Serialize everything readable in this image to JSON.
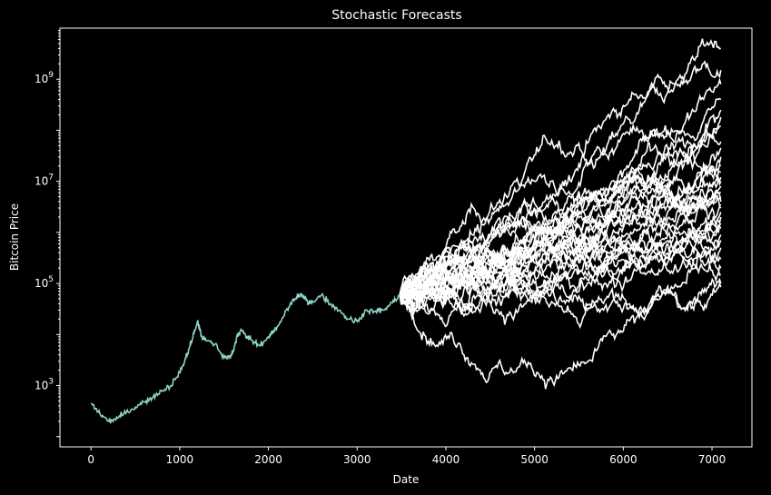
{
  "chart_data": {
    "type": "line",
    "title": "Stochastic Forecasts",
    "xlabel": "Date",
    "ylabel": "Bitcoin Price",
    "xlim": [
      -350,
      7450
    ],
    "ylim_log10": [
      1.8,
      10.0
    ],
    "y_scale": "log",
    "grid": false,
    "legend": "none",
    "x_ticks": [
      {
        "value": 0,
        "label": "0"
      },
      {
        "value": 1000,
        "label": "1000"
      },
      {
        "value": 2000,
        "label": "2000"
      },
      {
        "value": 3000,
        "label": "3000"
      },
      {
        "value": 4000,
        "label": "4000"
      },
      {
        "value": 5000,
        "label": "5000"
      },
      {
        "value": 6000,
        "label": "6000"
      },
      {
        "value": 7000,
        "label": "7000"
      }
    ],
    "y_ticks": [
      {
        "exp": 3,
        "base": "10",
        "sup": "3"
      },
      {
        "exp": 5,
        "base": "10",
        "sup": "5"
      },
      {
        "exp": 7,
        "base": "10",
        "sup": "7"
      },
      {
        "exp": 9,
        "base": "10",
        "sup": "9"
      }
    ],
    "colors": {
      "background": "#000000",
      "axes": "#ffffff",
      "history": "#8dd3c7",
      "forecast": "#ffffff"
    },
    "history": {
      "x": [
        0,
        100,
        200,
        300,
        400,
        500,
        600,
        700,
        800,
        900,
        1000,
        1050,
        1100,
        1150,
        1200,
        1250,
        1300,
        1400,
        1500,
        1550,
        1600,
        1650,
        1700,
        1750,
        1800,
        1900,
        2000,
        2050,
        2100,
        2200,
        2300,
        2350,
        2400,
        2450,
        2500,
        2600,
        2700,
        2800,
        2900,
        3000,
        3100,
        3200,
        3300,
        3400,
        3480
      ],
      "y": [
        450,
        280,
        200,
        230,
        300,
        380,
        480,
        600,
        800,
        1000,
        1800,
        2800,
        5000,
        9000,
        18000,
        9000,
        7500,
        6500,
        3500,
        3600,
        4500,
        10000,
        12000,
        9000,
        8000,
        6000,
        9000,
        11000,
        14000,
        30000,
        50000,
        60000,
        55000,
        40000,
        45000,
        60000,
        40000,
        30000,
        20000,
        18000,
        30000,
        28000,
        30000,
        42000,
        60000
      ]
    },
    "forecast": {
      "start_x": 3480,
      "end_x": 7100,
      "start_value": 60000,
      "series_final_values": [
        4000000000,
        1500000000,
        800000000,
        400000000,
        250000000,
        180000000,
        120000000,
        60000000,
        45000000,
        30000000,
        20000000,
        15000000,
        12000000,
        10000000,
        8000000,
        6000000,
        5000000,
        4000000,
        3500000,
        3000000,
        2500000,
        2000000,
        1500000,
        1200000,
        900000,
        700000,
        500000,
        300000,
        200000,
        150000,
        100000,
        85000
      ]
    }
  }
}
